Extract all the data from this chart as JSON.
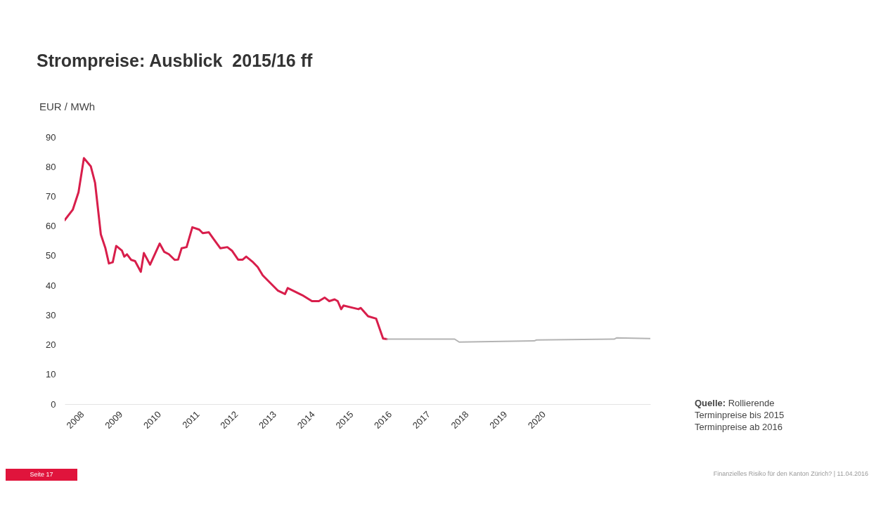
{
  "chart_data": {
    "type": "line",
    "title": "Strompreise: Ausblick  2015/16 ff",
    "ylabel": "EUR / MWh",
    "xlim": [
      2007.54,
      2022.77
    ],
    "xticks": [
      2008,
      2009,
      2010,
      2011,
      2012,
      2013,
      2014,
      2015,
      2016,
      2017,
      2018,
      2019,
      2020
    ],
    "ylim": [
      0,
      90
    ],
    "yticks": [
      0,
      10,
      20,
      30,
      40,
      50,
      60,
      70,
      80,
      90
    ],
    "grid": false,
    "line_style": "solid",
    "marker": "none",
    "series": [
      {
        "color": "#d81e4b",
        "x": [
          2007.54,
          2007.75,
          2007.9,
          2008.04,
          2008.22,
          2008.33,
          2008.48,
          2008.6,
          2008.69,
          2008.79,
          2008.88,
          2009.03,
          2009.09,
          2009.16,
          2009.27,
          2009.37,
          2009.52,
          2009.6,
          2009.76,
          2010.01,
          2010.13,
          2010.25,
          2010.4,
          2010.49,
          2010.58,
          2010.71,
          2010.86,
          2011.04,
          2011.13,
          2011.29,
          2011.41,
          2011.59,
          2011.77,
          2011.89,
          2012.05,
          2012.17,
          2012.26,
          2012.44,
          2012.56,
          2012.69,
          2013.08,
          2013.27,
          2013.34,
          2013.72,
          2013.97,
          2014.15,
          2014.3,
          2014.42,
          2014.56,
          2014.64,
          2014.73,
          2014.79,
          2015.18,
          2015.24,
          2015.43,
          2015.64,
          2015.82,
          2015.92
        ],
        "values": [
          62.0,
          65.5,
          71.4,
          82.9,
          80.1,
          74.6,
          57.2,
          52.5,
          47.4,
          47.8,
          53.3,
          51.7,
          49.7,
          50.5,
          48.6,
          48.2,
          44.6,
          50.9,
          47.0,
          54.1,
          51.3,
          50.5,
          48.6,
          48.7,
          52.5,
          52.9,
          59.6,
          58.8,
          57.6,
          57.9,
          55.7,
          52.5,
          52.9,
          51.7,
          48.7,
          48.7,
          49.7,
          47.8,
          46.2,
          43.4,
          38.3,
          37.1,
          39.1,
          36.7,
          34.7,
          34.7,
          35.9,
          34.7,
          35.3,
          34.7,
          32.0,
          33.2,
          32.0,
          32.4,
          29.6,
          28.8,
          22.1,
          21.9
        ]
      },
      {
        "color": "#b4b4b4",
        "x": [
          2015.92,
          2017.68,
          2017.8,
          2019.75,
          2019.81,
          2021.83,
          2021.89,
          2022.77
        ],
        "values": [
          21.9,
          21.9,
          20.9,
          21.3,
          21.6,
          21.9,
          22.3,
          22.1
        ]
      }
    ],
    "annotations": [
      "Quelle: Rollierende\nTerminpreise bis 2015\nTerminpreise ab 2016",
      "Finanzielles Risiko für den Kanton Zürich? | 11.04.2016",
      "Seite 17"
    ]
  }
}
